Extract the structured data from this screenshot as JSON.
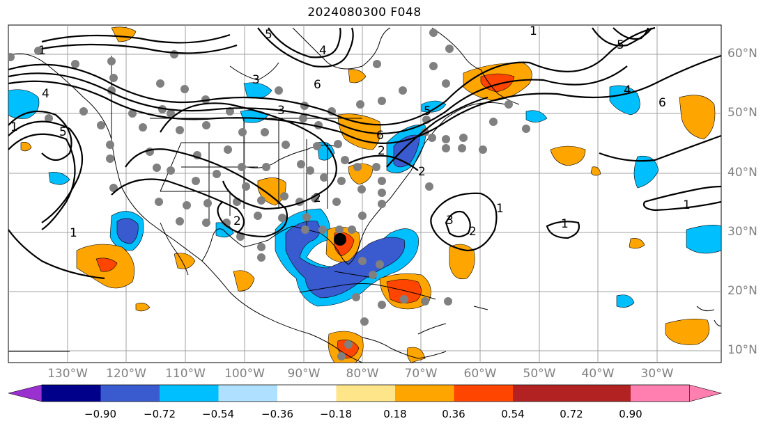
{
  "title": "2024080300 F048",
  "lat_labels": [
    "60°N",
    "50°N",
    "40°N",
    "30°N",
    "20°N",
    "10°N"
  ],
  "lon_labels": [
    "130°W",
    "120°W",
    "110°W",
    "100°W",
    "90°W",
    "80°W",
    "70°W",
    "60°W",
    "50°W",
    "40°W",
    "30°W"
  ],
  "colorbar": {
    "ticks": [
      "−0.90",
      "−0.72",
      "−0.54",
      "−0.36",
      "−0.18",
      "0.18",
      "0.36",
      "0.54",
      "0.72",
      "0.90"
    ],
    "colors": [
      "#9b30d0",
      "#00008b",
      "#3a5bd0",
      "#00bfff",
      "#b0e0ff",
      "#ffffff",
      "#ffe58a",
      "#ffa500",
      "#ff4500",
      "#b22222",
      "#ff80b0"
    ]
  },
  "contour_labels": [
    "5",
    "6",
    "4",
    "3",
    "2",
    "1",
    "6",
    "5",
    "4",
    "3",
    "2",
    "1",
    "5",
    "1",
    "4",
    "2",
    "1",
    "3",
    "2",
    "1",
    "1",
    "2",
    "1",
    "5",
    "6"
  ]
}
